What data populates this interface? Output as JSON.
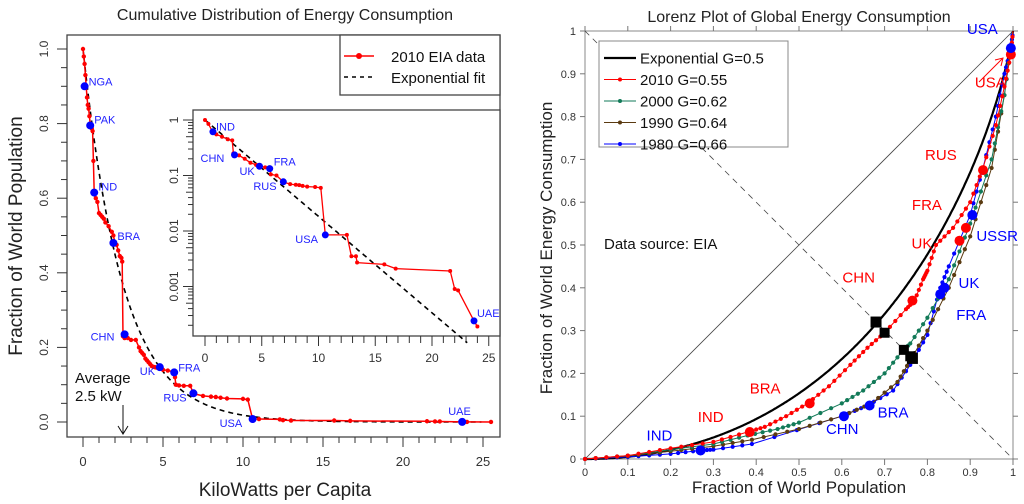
{
  "chart_data": [
    {
      "type": "line",
      "title": "Cumulative Distribution of Energy Consumption",
      "xlabel": "KiloWatts per Capita",
      "ylabel": "Fraction of World Population",
      "xlim": [
        -1,
        26
      ],
      "ylim": [
        -0.03,
        1.03
      ],
      "xticks": [
        0,
        5,
        10,
        15,
        20,
        25
      ],
      "xtick_labels": [
        "0",
        "5",
        "10",
        "15",
        "20",
        "25"
      ],
      "yticks": [
        0.0,
        0.2,
        0.4,
        0.6,
        0.8,
        1.0
      ],
      "ytick_labels": [
        "0.0",
        "0.2",
        "0.4",
        "0.6",
        "0.8",
        "1.0"
      ],
      "grid": false,
      "legend_position": "top-right",
      "legend": [
        {
          "label": "2010 EIA data",
          "color": "#ff0000",
          "style": "solid-dot"
        },
        {
          "label": "Exponential fit",
          "color": "#000000",
          "style": "dashed"
        }
      ],
      "series": [
        {
          "name": "2010 EIA data",
          "color": "#ff0000",
          "x": [
            0.0,
            0.05,
            0.1,
            0.15,
            0.2,
            0.25,
            0.3,
            0.35,
            0.4,
            0.45,
            0.5,
            0.55,
            0.6,
            0.65,
            0.7,
            0.8,
            0.9,
            1.0,
            1.1,
            1.2,
            1.3,
            1.4,
            1.6,
            1.8,
            1.9,
            2.0,
            2.1,
            2.2,
            2.3,
            2.4,
            2.45,
            2.5,
            2.6,
            2.8,
            3.0,
            3.3,
            3.5,
            3.6,
            3.7,
            3.8,
            3.9,
            4.0,
            4.1,
            4.2,
            4.3,
            4.4,
            4.5,
            4.6,
            4.7,
            4.8,
            5.0,
            5.3,
            5.6,
            5.7,
            5.75,
            5.8,
            6.0,
            6.3,
            6.7,
            6.9,
            7.0,
            7.5,
            8.0,
            8.3,
            8.6,
            9.0,
            10.0,
            10.3,
            10.6,
            11.0,
            12.3,
            12.5,
            13.0,
            15.7,
            16.7,
            21.5,
            22.0,
            22.3,
            23.7,
            24.0,
            25.5
          ],
          "y": [
            1.0,
            0.98,
            0.96,
            0.93,
            0.9,
            0.87,
            0.85,
            0.84,
            0.82,
            0.8,
            0.79,
            0.787,
            0.78,
            0.7,
            0.615,
            0.6,
            0.59,
            0.56,
            0.555,
            0.55,
            0.545,
            0.535,
            0.525,
            0.51,
            0.5,
            0.48,
            0.475,
            0.46,
            0.445,
            0.44,
            0.43,
            0.23,
            0.225,
            0.225,
            0.22,
            0.22,
            0.2,
            0.19,
            0.185,
            0.18,
            0.17,
            0.165,
            0.16,
            0.155,
            0.15,
            0.148,
            0.147,
            0.146,
            0.145,
            0.145,
            0.14,
            0.138,
            0.135,
            0.132,
            0.12,
            0.1,
            0.098,
            0.097,
            0.097,
            0.077,
            0.075,
            0.07,
            0.068,
            0.067,
            0.065,
            0.063,
            0.062,
            0.06,
            0.008,
            0.008,
            0.007,
            0.005,
            0.004,
            0.004,
            0.003,
            0.002,
            0.0015,
            0.0014,
            0.0003,
            0.0002,
            0.0001
          ]
        },
        {
          "name": "Exponential fit",
          "color": "#000000",
          "function": "y = exp(-x/2.5)"
        }
      ],
      "labeled_points": [
        {
          "label": "NGA",
          "x": 0.1,
          "y": 0.9
        },
        {
          "label": "PAK",
          "x": 0.45,
          "y": 0.795
        },
        {
          "label": "IND",
          "x": 0.7,
          "y": 0.615
        },
        {
          "label": "BRA",
          "x": 1.9,
          "y": 0.48
        },
        {
          "label": "CHN",
          "x": 2.6,
          "y": 0.235
        },
        {
          "label": "UK",
          "x": 4.8,
          "y": 0.147
        },
        {
          "label": "FRA",
          "x": 5.7,
          "y": 0.133
        },
        {
          "label": "RUS",
          "x": 6.9,
          "y": 0.077
        },
        {
          "label": "USA",
          "x": 10.6,
          "y": 0.008
        },
        {
          "label": "UAE",
          "x": 23.7,
          "y": 0.0003
        }
      ],
      "annotations": [
        {
          "text": "Average",
          "x": 2.5
        },
        {
          "text": "2.5 kW",
          "x": 2.5
        }
      ],
      "inset": {
        "type": "line",
        "yscale": "log",
        "xlim": [
          -1,
          26
        ],
        "ylim": [
          0.0001,
          1.3
        ],
        "xticks": [
          0,
          5,
          10,
          15,
          20,
          25
        ],
        "xtick_labels": [
          "0",
          "5",
          "10",
          "15",
          "20",
          "25"
        ],
        "yticks": [
          0.001,
          0.01,
          0.1,
          1
        ],
        "ytick_labels": [
          "0.001",
          "0.01",
          "0.1",
          "1"
        ],
        "labeled_points": [
          {
            "label": "IND",
            "x": 0.7,
            "y": 0.615
          },
          {
            "label": "CHN",
            "x": 2.6,
            "y": 0.235
          },
          {
            "label": "UK",
            "x": 4.8,
            "y": 0.147
          },
          {
            "label": "FRA",
            "x": 5.7,
            "y": 0.133
          },
          {
            "label": "RUS",
            "x": 6.9,
            "y": 0.077
          },
          {
            "label": "USA",
            "x": 10.6,
            "y": 0.0085
          },
          {
            "label": "UAE",
            "x": 23.7,
            "y": 0.00024
          }
        ],
        "series_x": [
          0.0,
          0.3,
          0.7,
          1.0,
          1.5,
          2.0,
          2.4,
          2.5,
          2.6,
          3.0,
          3.5,
          4.0,
          4.5,
          4.8,
          5.3,
          5.7,
          5.8,
          6.3,
          6.9,
          7.0,
          7.5,
          8.0,
          8.3,
          8.6,
          9.0,
          9.7,
          10.2,
          10.6,
          12.5,
          12.9,
          13.3,
          13.4,
          15.8,
          16.8,
          21.6,
          22.0,
          22.3,
          23.7,
          24.0
        ],
        "series_y": [
          1.0,
          0.85,
          0.6,
          0.55,
          0.5,
          0.45,
          0.43,
          0.25,
          0.235,
          0.23,
          0.2,
          0.17,
          0.155,
          0.147,
          0.14,
          0.133,
          0.105,
          0.1,
          0.077,
          0.075,
          0.07,
          0.068,
          0.067,
          0.065,
          0.063,
          0.062,
          0.06,
          0.0085,
          0.0085,
          0.0035,
          0.0035,
          0.0027,
          0.0025,
          0.0021,
          0.0019,
          0.0009,
          0.00085,
          0.00024,
          0.00019
        ]
      }
    },
    {
      "type": "line",
      "title": "Lorenz Plot of Global Energy Consumption",
      "xlabel": "Fraction of World Population",
      "ylabel": "Fraction of World Energy Consumption",
      "xlim": [
        0,
        1
      ],
      "ylim": [
        0,
        1
      ],
      "xticks": [
        0,
        0.1,
        0.2,
        0.3,
        0.4,
        0.5,
        0.6,
        0.7,
        0.8,
        0.9,
        1
      ],
      "xtick_labels": [
        "0",
        "0.1",
        "0.2",
        "0.3",
        "0.4",
        "0.5",
        "0.6",
        "0.7",
        "0.8",
        "0.9",
        "1"
      ],
      "yticks": [
        0,
        0.1,
        0.2,
        0.3,
        0.4,
        0.5,
        0.6,
        0.7,
        0.8,
        0.9,
        1
      ],
      "ytick_labels": [
        "0",
        "0.1",
        "0.2",
        "0.3",
        "0.4",
        "0.5",
        "0.6",
        "0.7",
        "0.8",
        "0.9",
        "1"
      ],
      "grid": false,
      "legend_position": "top-left",
      "legend": [
        {
          "label": "Exponential G=0.5",
          "color": "#000000"
        },
        {
          "label": "2010 G=0.55",
          "color": "#ff0000"
        },
        {
          "label": "2000 G=0.62",
          "color": "#127a58"
        },
        {
          "label": "1990 G=0.64",
          "color": "#5a3a10"
        },
        {
          "label": "1980 G=0.66",
          "color": "#0000ff"
        }
      ],
      "annotations": [
        {
          "text": "Data source: EIA"
        }
      ],
      "series": [
        {
          "name": "Exponential G=0.5",
          "color": "#000000",
          "function": "y = x + (1-x)*ln(1-x)"
        },
        {
          "name": "2010 G=0.55",
          "color": "#ff0000",
          "x": [
            0,
            0.1,
            0.2,
            0.3,
            0.38,
            0.42,
            0.47,
            0.52,
            0.57,
            0.62,
            0.66,
            0.7,
            0.75,
            0.77,
            0.79,
            0.8,
            0.82,
            0.86,
            0.9,
            0.93,
            0.96,
            0.98,
            0.995,
            1
          ],
          "y": [
            0,
            0.008,
            0.025,
            0.04,
            0.063,
            0.075,
            0.1,
            0.13,
            0.17,
            0.22,
            0.26,
            0.295,
            0.35,
            0.37,
            0.42,
            0.44,
            0.5,
            0.54,
            0.6,
            0.68,
            0.78,
            0.87,
            0.945,
            1
          ]
        },
        {
          "name": "2000 G=0.62",
          "color": "#127a58",
          "x": [
            0,
            0.1,
            0.2,
            0.3,
            0.38,
            0.45,
            0.5,
            0.6,
            0.65,
            0.7,
            0.74,
            0.76,
            0.8,
            0.85,
            0.9,
            0.95,
            0.98,
            1
          ],
          "y": [
            0,
            0.008,
            0.022,
            0.035,
            0.055,
            0.07,
            0.085,
            0.13,
            0.16,
            0.2,
            0.25,
            0.27,
            0.33,
            0.42,
            0.55,
            0.7,
            0.85,
            1
          ]
        },
        {
          "name": "1990 G=0.64",
          "color": "#5a3a10",
          "x": [
            0,
            0.1,
            0.2,
            0.3,
            0.39,
            0.5,
            0.6,
            0.67,
            0.73,
            0.76,
            0.8,
            0.85,
            0.9,
            0.95,
            0.98,
            1
          ],
          "y": [
            0,
            0.007,
            0.018,
            0.03,
            0.045,
            0.07,
            0.1,
            0.13,
            0.18,
            0.23,
            0.3,
            0.4,
            0.52,
            0.68,
            0.85,
            1
          ]
        },
        {
          "name": "1980 G=0.66",
          "color": "#0000ff",
          "x": [
            0,
            0.1,
            0.2,
            0.27,
            0.3,
            0.39,
            0.6,
            0.66,
            0.72,
            0.76,
            0.8,
            0.83,
            0.85,
            0.9,
            0.93,
            0.96,
            0.98,
            0.995,
            1
          ],
          "y": [
            0,
            0.005,
            0.012,
            0.02,
            0.022,
            0.035,
            0.1,
            0.125,
            0.16,
            0.22,
            0.29,
            0.4,
            0.45,
            0.57,
            0.68,
            0.8,
            0.9,
            0.96,
            1
          ]
        }
      ],
      "labeled_points": [
        {
          "label": "USA",
          "series": "2010",
          "x": 0.995,
          "y": 0.945,
          "color": "#ff0000"
        },
        {
          "label": "RUS",
          "series": "2010",
          "x": 0.93,
          "y": 0.675,
          "color": "#ff0000"
        },
        {
          "label": "FRA",
          "series": "2010",
          "x": 0.89,
          "y": 0.54,
          "color": "#ff0000"
        },
        {
          "label": "UK",
          "series": "2010",
          "x": 0.875,
          "y": 0.51,
          "color": "#ff0000"
        },
        {
          "label": "CHN",
          "series": "2010",
          "x": 0.765,
          "y": 0.37,
          "color": "#ff0000"
        },
        {
          "label": "BRA",
          "series": "2010",
          "x": 0.525,
          "y": 0.13,
          "color": "#ff0000"
        },
        {
          "label": "IND",
          "series": "2010",
          "x": 0.385,
          "y": 0.063,
          "color": "#ff0000"
        },
        {
          "label": "USA",
          "series": "1980",
          "x": 0.995,
          "y": 0.96,
          "color": "#0000ff"
        },
        {
          "label": "USSR",
          "series": "1980",
          "x": 0.905,
          "y": 0.57,
          "color": "#0000ff"
        },
        {
          "label": "UK",
          "series": "1980",
          "x": 0.84,
          "y": 0.4,
          "color": "#0000ff"
        },
        {
          "label": "FRA",
          "series": "1980",
          "x": 0.83,
          "y": 0.385,
          "color": "#0000ff"
        },
        {
          "label": "BRA",
          "series": "1980",
          "x": 0.665,
          "y": 0.125,
          "color": "#0000ff"
        },
        {
          "label": "CHN",
          "series": "1980",
          "x": 0.605,
          "y": 0.1,
          "color": "#0000ff"
        },
        {
          "label": "IND",
          "series": "1980",
          "x": 0.27,
          "y": 0.02,
          "color": "#0000ff"
        }
      ],
      "median_markers": [
        {
          "series": "Exponential",
          "x": 0.68,
          "y": 0.32
        },
        {
          "series": "2010",
          "x": 0.7,
          "y": 0.295
        },
        {
          "series": "2000",
          "x": 0.745,
          "y": 0.255
        },
        {
          "series": "1990",
          "x": 0.76,
          "y": 0.24
        },
        {
          "series": "1980",
          "x": 0.765,
          "y": 0.235
        }
      ]
    }
  ]
}
